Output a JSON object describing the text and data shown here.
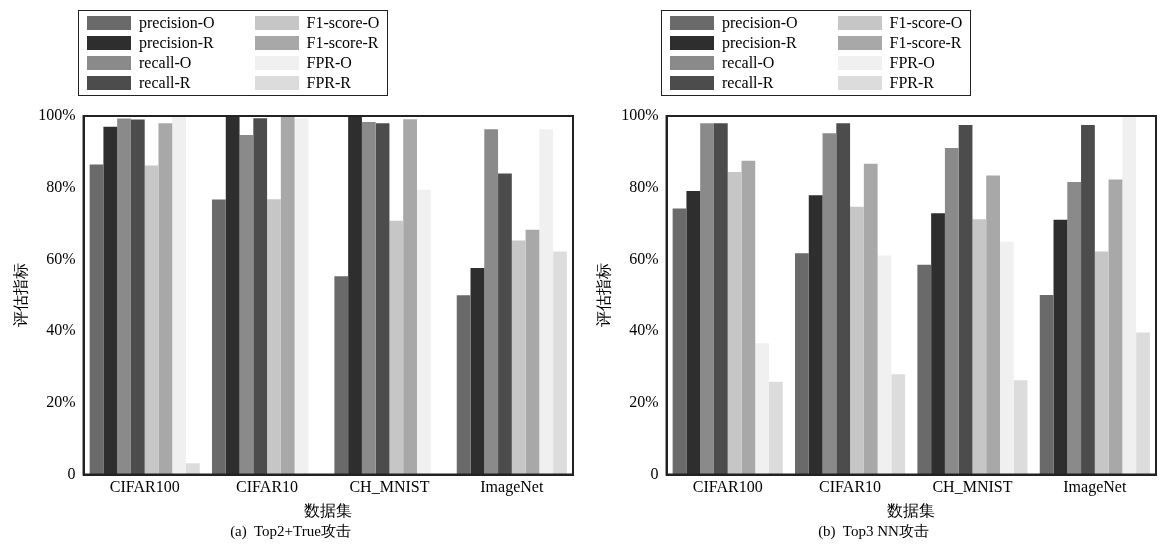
{
  "chart_data": [
    {
      "type": "bar",
      "title": "(a)  Top2+True攻击",
      "xlabel": "数据集",
      "ylabel": "评估指标",
      "categories": [
        "CIFAR100",
        "CIFAR10",
        "CH_MNIST",
        "ImageNet"
      ],
      "ylim": [
        0,
        100
      ],
      "yticks": [
        0,
        {
          "value": 20,
          "label": "20%"
        },
        {
          "value": 40,
          "label": "40%"
        },
        {
          "value": 60,
          "label": "60%"
        },
        {
          "value": 80,
          "label": "80%"
        },
        {
          "value": 100,
          "label": "100%"
        }
      ],
      "legend": "top left",
      "series": [
        {
          "name": "precision-O",
          "color": "#6a6a6a",
          "values": [
            86.5,
            76.7,
            55.3,
            50
          ]
        },
        {
          "name": "precision-R",
          "color": "#2e2e2e",
          "values": [
            97,
            100,
            100,
            57.6
          ]
        },
        {
          "name": "recall-O",
          "color": "#8a8a8a",
          "values": [
            99.3,
            94.7,
            98.3,
            96.3
          ]
        },
        {
          "name": "recall-R",
          "color": "#4c4c4c",
          "values": [
            99,
            99.4,
            98,
            84
          ]
        },
        {
          "name": "F1-score-O",
          "color": "#c6c6c6",
          "values": [
            86.2,
            76.8,
            70.8,
            65.3
          ]
        },
        {
          "name": "F1-score-R",
          "color": "#a8a8a8",
          "values": [
            98,
            100,
            99.1,
            68.3
          ]
        },
        {
          "name": "FPR-O",
          "color": "#f0f0f0",
          "values": [
            100,
            99.4,
            79.4,
            96.3
          ]
        },
        {
          "name": "FPR-R",
          "color": "#dcdcdc",
          "values": [
            3.2,
            0,
            0,
            62.2
          ]
        }
      ]
    },
    {
      "type": "bar",
      "title": "(b)  Top3 NN攻击",
      "xlabel": "数据集",
      "ylabel": "评估指标",
      "categories": [
        "CIFAR100",
        "CIFAR10",
        "CH_MNIST",
        "ImageNet"
      ],
      "ylim": [
        0,
        100
      ],
      "yticks": [
        0,
        {
          "value": 20,
          "label": "20%"
        },
        {
          "value": 40,
          "label": "40%"
        },
        {
          "value": 60,
          "label": "60%"
        },
        {
          "value": 80,
          "label": "80%"
        },
        {
          "value": 100,
          "label": "100%"
        }
      ],
      "legend": "top left",
      "series": [
        {
          "name": "precision-O",
          "color": "#6a6a6a",
          "values": [
            74.2,
            61.7,
            58.5,
            50.1
          ]
        },
        {
          "name": "precision-R",
          "color": "#2e2e2e",
          "values": [
            79.1,
            77.9,
            72.9,
            71.1
          ]
        },
        {
          "name": "recall-O",
          "color": "#8a8a8a",
          "values": [
            98,
            95.2,
            91.1,
            81.6
          ]
        },
        {
          "name": "recall-R",
          "color": "#4c4c4c",
          "values": [
            98,
            98,
            97.5,
            97.5
          ]
        },
        {
          "name": "F1-score-O",
          "color": "#c6c6c6",
          "values": [
            84.4,
            74.7,
            71.2,
            62.2
          ]
        },
        {
          "name": "F1-score-R",
          "color": "#a8a8a8",
          "values": [
            87.5,
            86.7,
            83.4,
            82.3
          ]
        },
        {
          "name": "FPR-O",
          "color": "#f0f0f0",
          "values": [
            36.6,
            61.1,
            64.9,
            100
          ]
        },
        {
          "name": "FPR-R",
          "color": "#dcdcdc",
          "values": [
            25.9,
            28,
            26.3,
            39.6
          ]
        }
      ]
    }
  ]
}
